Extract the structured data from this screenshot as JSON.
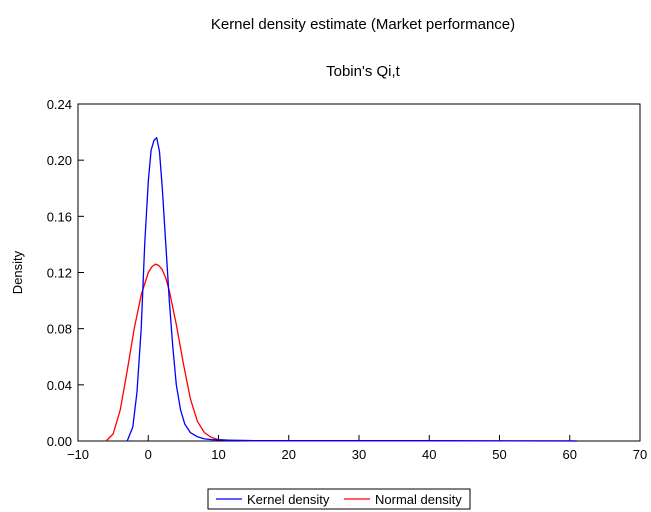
{
  "chart_data": {
    "type": "line",
    "title": "Kernel density estimate (Market performance)",
    "subtitle": "Tobin's Qi,t",
    "xlabel": "",
    "ylabel": "Density",
    "xlim": [
      -10,
      70
    ],
    "ylim": [
      0,
      0.24
    ],
    "xticks": [
      -10,
      0,
      10,
      20,
      30,
      40,
      50,
      60,
      70
    ],
    "xtick_labels": [
      "−10",
      "0",
      "10",
      "20",
      "30",
      "40",
      "50",
      "60",
      "70"
    ],
    "yticks": [
      0,
      0.04,
      0.08,
      0.12,
      0.16,
      0.2,
      0.24
    ],
    "ytick_labels": [
      "0.00",
      "0.04",
      "0.08",
      "0.12",
      "0.16",
      "0.20",
      "0.24"
    ],
    "grid": false,
    "legend_position": "bottom-center",
    "series": [
      {
        "name": "Kernel density",
        "color": "#0000ff",
        "x": [
          -3.0,
          -2.2,
          -1.6,
          -1.0,
          -0.5,
          0.0,
          0.4,
          0.8,
          1.2,
          1.6,
          2.0,
          2.5,
          3.0,
          3.5,
          4.0,
          4.6,
          5.2,
          6.0,
          7.0,
          8.0,
          9.0,
          10.0,
          12.0,
          15.0,
          20.0,
          30.0,
          40.0,
          50.0,
          61.0
        ],
        "y": [
          0.0,
          0.01,
          0.035,
          0.08,
          0.14,
          0.185,
          0.207,
          0.214,
          0.216,
          0.206,
          0.18,
          0.14,
          0.1,
          0.067,
          0.04,
          0.022,
          0.012,
          0.006,
          0.003,
          0.0015,
          0.001,
          0.0008,
          0.0005,
          0.0003,
          0.0002,
          0.0002,
          0.0002,
          0.0001,
          0.0
        ]
      },
      {
        "name": "Normal density",
        "color": "#ff0000",
        "x": [
          -6.0,
          -5.0,
          -4.0,
          -3.0,
          -2.0,
          -1.0,
          0.0,
          0.5,
          1.0,
          1.5,
          2.0,
          2.5,
          3.0,
          4.0,
          5.0,
          6.0,
          7.0,
          8.0,
          9.0,
          10.0,
          12.0,
          15.0,
          20.0,
          30.0,
          40.0,
          50.0,
          60.0,
          61.0
        ],
        "y": [
          0.0,
          0.005,
          0.022,
          0.05,
          0.08,
          0.104,
          0.12,
          0.124,
          0.126,
          0.125,
          0.122,
          0.116,
          0.107,
          0.083,
          0.055,
          0.03,
          0.014,
          0.006,
          0.0025,
          0.001,
          0.0004,
          0.0002,
          0.0001,
          0.0001,
          0.0001,
          0.0001,
          0.0001,
          0.0
        ]
      }
    ]
  }
}
